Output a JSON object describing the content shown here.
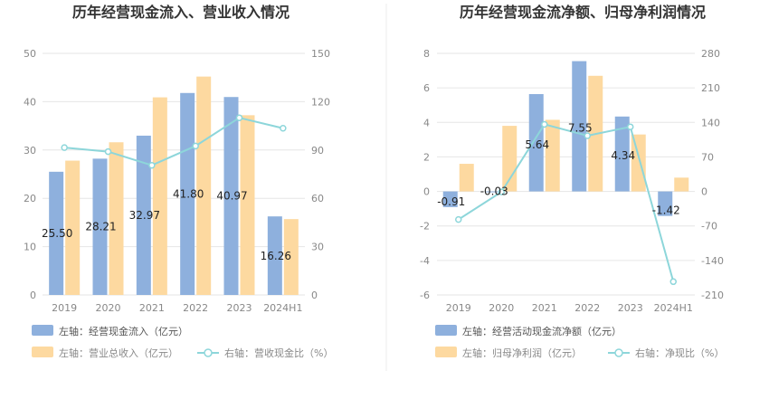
{
  "colors": {
    "bar_primary": "#8eb0dd",
    "bar_secondary": "#fdd9a0",
    "line": "#8dd6da",
    "grid": "#e6e6e6",
    "tick_text": "#888888",
    "title_text": "#333333",
    "label_text": "#222222",
    "divider": "#eeeeee"
  },
  "chart_data": [
    {
      "type": "bar",
      "title": "历年经营现金流入、营业收入情况",
      "categories": [
        "2019",
        "2020",
        "2021",
        "2022",
        "2023",
        "2024H1"
      ],
      "left_axis": {
        "ylim": [
          0,
          50
        ],
        "ticks": [
          "0",
          "10",
          "20",
          "30",
          "40",
          "50"
        ]
      },
      "right_axis": {
        "ylim": [
          0,
          150
        ],
        "ticks": [
          "0",
          "30",
          "60",
          "90",
          "120",
          "150"
        ]
      },
      "series": [
        {
          "name": "左轴：经营现金流入（亿元）",
          "kind": "bar",
          "axis": "left",
          "values": [
            25.5,
            28.21,
            32.97,
            41.8,
            40.97,
            16.26
          ],
          "labels": [
            "25.50",
            "28.21",
            "32.97",
            "41.80",
            "40.97",
            "16.26"
          ]
        },
        {
          "name": "左轴：营业总收入（亿元）",
          "kind": "bar",
          "axis": "left",
          "values": [
            27.8,
            31.6,
            40.9,
            45.2,
            37.2,
            15.7
          ]
        },
        {
          "name": "右轴：营收现金比（%）",
          "kind": "line",
          "axis": "right",
          "values": [
            91.5,
            89,
            80.5,
            92.5,
            110,
            103.5
          ]
        }
      ],
      "legend_position": "bottom-left"
    },
    {
      "type": "bar",
      "title": "历年经营现金流净额、归母净利润情况",
      "categories": [
        "2019",
        "2020",
        "2021",
        "2022",
        "2023",
        "2024H1"
      ],
      "left_axis": {
        "ylim": [
          -6,
          8
        ],
        "ticks": [
          "-6",
          "-4",
          "-2",
          "0",
          "2",
          "4",
          "6",
          "8"
        ]
      },
      "right_axis": {
        "ylim": [
          -210,
          280
        ],
        "ticks": [
          "-210",
          "-140",
          "-70",
          "0",
          "70",
          "140",
          "210",
          "280"
        ]
      },
      "series": [
        {
          "name": "左轴：经营活动现金流净额（亿元）",
          "kind": "bar",
          "axis": "left",
          "values": [
            -0.91,
            -0.03,
            5.64,
            7.55,
            4.34,
            -1.42
          ],
          "labels": [
            "-0.91",
            "-0.03",
            "5.64",
            "7.55",
            "4.34",
            "-1.42"
          ]
        },
        {
          "name": "左轴：归母净利润（亿元）",
          "kind": "bar",
          "axis": "left",
          "values": [
            1.6,
            3.8,
            4.15,
            6.7,
            3.3,
            0.8
          ]
        },
        {
          "name": "右轴：净现比（%）",
          "kind": "line",
          "axis": "right",
          "values": [
            -57,
            -1,
            136,
            113,
            131,
            -183
          ]
        }
      ],
      "legend_position": "bottom-left"
    }
  ]
}
